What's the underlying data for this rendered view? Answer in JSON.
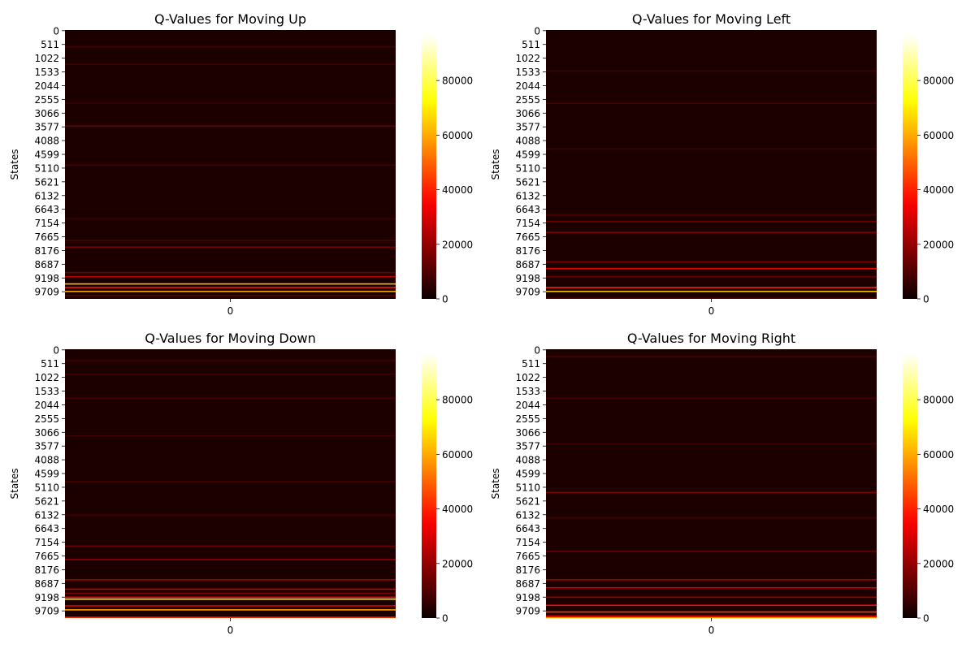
{
  "chart_data": [
    {
      "type": "heatmap",
      "title": "Q-Values for Moving Up",
      "ylabel": "States",
      "xlabel": "",
      "x_ticks": [
        "0"
      ],
      "y_ticks": [
        "0",
        "511",
        "1022",
        "1533",
        "2044",
        "2555",
        "3066",
        "3577",
        "4088",
        "4599",
        "5110",
        "5621",
        "6132",
        "6643",
        "7154",
        "7665",
        "8176",
        "8687",
        "9198",
        "9709"
      ],
      "n_states": 10000,
      "colormap": "hot",
      "vmin": 0,
      "vmax": 97000,
      "colorbar_ticks": [
        "0",
        "20000",
        "40000",
        "60000",
        "80000"
      ],
      "colorbar_tick_values": [
        0,
        20000,
        40000,
        60000,
        80000
      ],
      "background_value": 2500,
      "bands": [
        {
          "state": 600,
          "value": 9000
        },
        {
          "state": 1250,
          "value": 8000
        },
        {
          "state": 2700,
          "value": 7000
        },
        {
          "state": 3550,
          "value": 14000
        },
        {
          "state": 5000,
          "value": 9000
        },
        {
          "state": 7000,
          "value": 8000
        },
        {
          "state": 7800,
          "value": 9000
        },
        {
          "state": 8050,
          "value": 16000
        },
        {
          "state": 9000,
          "value": 14000
        },
        {
          "state": 9150,
          "value": 26000
        },
        {
          "state": 9420,
          "value": 62000
        },
        {
          "state": 9550,
          "value": 38000
        },
        {
          "state": 9700,
          "value": 60000
        },
        {
          "state": 9850,
          "value": 12000
        }
      ]
    },
    {
      "type": "heatmap",
      "title": "Q-Values for Moving Left",
      "ylabel": "States",
      "xlabel": "",
      "x_ticks": [
        "0"
      ],
      "y_ticks": [
        "0",
        "511",
        "1022",
        "1533",
        "2044",
        "2555",
        "3066",
        "3577",
        "4088",
        "4599",
        "5110",
        "5621",
        "6132",
        "6643",
        "7154",
        "7665",
        "8176",
        "8687",
        "9198",
        "9709"
      ],
      "n_states": 10000,
      "colormap": "hot",
      "vmin": 0,
      "vmax": 97000,
      "colorbar_ticks": [
        "0",
        "20000",
        "40000",
        "60000",
        "80000"
      ],
      "colorbar_tick_values": [
        0,
        20000,
        40000,
        60000,
        80000
      ],
      "background_value": 2500,
      "bands": [
        {
          "state": 1500,
          "value": 8000
        },
        {
          "state": 2700,
          "value": 9000
        },
        {
          "state": 4400,
          "value": 8000
        },
        {
          "state": 6850,
          "value": 9000
        },
        {
          "state": 7100,
          "value": 14000
        },
        {
          "state": 7500,
          "value": 18000
        },
        {
          "state": 8600,
          "value": 16000
        },
        {
          "state": 8850,
          "value": 32000
        },
        {
          "state": 9150,
          "value": 14000
        },
        {
          "state": 9550,
          "value": 40000
        },
        {
          "state": 9700,
          "value": 64000
        },
        {
          "state": 9950,
          "value": 10000
        }
      ]
    },
    {
      "type": "heatmap",
      "title": "Q-Values for Moving Down",
      "ylabel": "States",
      "xlabel": "",
      "x_ticks": [
        "0"
      ],
      "y_ticks": [
        "0",
        "511",
        "1022",
        "1533",
        "2044",
        "2555",
        "3066",
        "3577",
        "4088",
        "4599",
        "5110",
        "5621",
        "6132",
        "6643",
        "7154",
        "7665",
        "8176",
        "8687",
        "9198",
        "9709"
      ],
      "n_states": 10000,
      "colormap": "hot",
      "vmin": 0,
      "vmax": 97000,
      "colorbar_ticks": [
        "0",
        "20000",
        "40000",
        "60000",
        "80000"
      ],
      "colorbar_tick_values": [
        0,
        20000,
        40000,
        60000,
        80000
      ],
      "background_value": 2500,
      "bands": [
        {
          "state": 400,
          "value": 9000
        },
        {
          "state": 900,
          "value": 8000
        },
        {
          "state": 1800,
          "value": 9000
        },
        {
          "state": 3200,
          "value": 8000
        },
        {
          "state": 4900,
          "value": 9000
        },
        {
          "state": 6150,
          "value": 8000
        },
        {
          "state": 7300,
          "value": 14000
        },
        {
          "state": 7800,
          "value": 20000
        },
        {
          "state": 8550,
          "value": 22000
        },
        {
          "state": 8900,
          "value": 26000
        },
        {
          "state": 9050,
          "value": 16000
        },
        {
          "state": 9200,
          "value": 34000
        },
        {
          "state": 9270,
          "value": 70000
        },
        {
          "state": 9520,
          "value": 30000
        },
        {
          "state": 9670,
          "value": 58000
        },
        {
          "state": 9950,
          "value": 42000
        }
      ]
    },
    {
      "type": "heatmap",
      "title": "Q-Values for Moving Right",
      "ylabel": "States",
      "xlabel": "",
      "x_ticks": [
        "0"
      ],
      "y_ticks": [
        "0",
        "511",
        "1022",
        "1533",
        "2044",
        "2555",
        "3066",
        "3577",
        "4088",
        "4599",
        "5110",
        "5621",
        "6132",
        "6643",
        "7154",
        "7665",
        "8176",
        "8687",
        "9198",
        "9709"
      ],
      "n_states": 10000,
      "colormap": "hot",
      "vmin": 0,
      "vmax": 97000,
      "colorbar_ticks": [
        "0",
        "20000",
        "40000",
        "60000",
        "80000"
      ],
      "colorbar_tick_values": [
        0,
        20000,
        40000,
        60000,
        80000
      ],
      "background_value": 2500,
      "bands": [
        {
          "state": 250,
          "value": 9000
        },
        {
          "state": 1800,
          "value": 9000
        },
        {
          "state": 3500,
          "value": 8000
        },
        {
          "state": 5300,
          "value": 16000
        },
        {
          "state": 6250,
          "value": 9000
        },
        {
          "state": 7500,
          "value": 14000
        },
        {
          "state": 8550,
          "value": 22000
        },
        {
          "state": 8850,
          "value": 30000
        },
        {
          "state": 9200,
          "value": 20000
        },
        {
          "state": 9500,
          "value": 36000
        },
        {
          "state": 9750,
          "value": 44000
        },
        {
          "state": 9900,
          "value": 30000
        },
        {
          "state": 9960,
          "value": 58000
        }
      ]
    }
  ]
}
